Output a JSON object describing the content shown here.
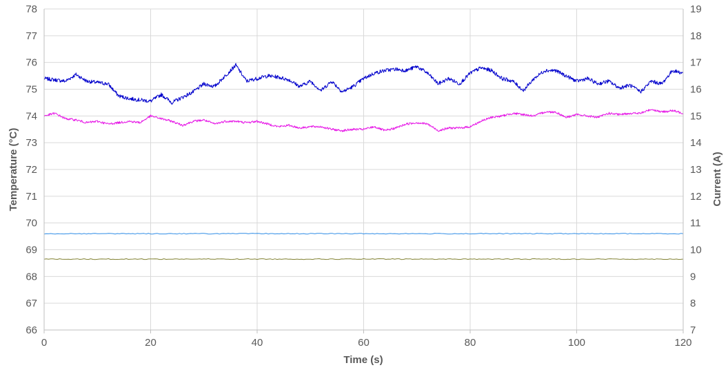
{
  "chart_data": {
    "type": "line",
    "xlabel": "Time (s)",
    "ylabel": "Temperature (°C)",
    "y2label": "Current (A)",
    "xlim": [
      0,
      120
    ],
    "ylim": [
      66,
      78
    ],
    "y2lim": [
      7,
      19
    ],
    "x_ticks": [
      "0",
      "20",
      "40",
      "60",
      "80",
      "100",
      "120"
    ],
    "y_ticks": [
      "66",
      "67",
      "68",
      "69",
      "70",
      "71",
      "72",
      "73",
      "74",
      "75",
      "76",
      "77",
      "78"
    ],
    "y2_ticks": [
      "7",
      "8",
      "9",
      "10",
      "11",
      "12",
      "13",
      "14",
      "15",
      "16",
      "17",
      "18",
      "19"
    ],
    "grid": true,
    "legend": "none",
    "series": [
      {
        "axis": "right",
        "color": "#0000cc",
        "x": [
          0,
          2,
          4,
          6,
          8,
          10,
          12,
          14,
          16,
          18,
          20,
          22,
          24,
          26,
          28,
          30,
          32,
          34,
          36,
          38,
          40,
          42,
          44,
          46,
          48,
          50,
          52,
          54,
          56,
          58,
          60,
          62,
          64,
          66,
          68,
          70,
          72,
          74,
          76,
          78,
          80,
          82,
          84,
          86,
          88,
          90,
          92,
          94,
          96,
          98,
          100,
          102,
          104,
          106,
          108,
          110,
          112,
          114,
          116,
          118,
          120
        ],
        "values": [
          16.4,
          16.35,
          16.3,
          16.55,
          16.3,
          16.25,
          16.2,
          15.75,
          15.65,
          15.6,
          15.55,
          15.8,
          15.5,
          15.7,
          15.9,
          16.2,
          16.1,
          16.5,
          16.9,
          16.3,
          16.4,
          16.5,
          16.45,
          16.35,
          16.1,
          16.3,
          15.95,
          16.3,
          15.9,
          16.1,
          16.4,
          16.6,
          16.7,
          16.75,
          16.7,
          16.85,
          16.6,
          16.2,
          16.4,
          16.2,
          16.6,
          16.8,
          16.7,
          16.4,
          16.3,
          15.95,
          16.4,
          16.7,
          16.7,
          16.5,
          16.3,
          16.4,
          16.2,
          16.3,
          16.05,
          16.15,
          15.9,
          16.3,
          16.2,
          16.7,
          16.6
        ]
      },
      {
        "axis": "left",
        "color": "#e619e6",
        "x": [
          0,
          2,
          4,
          6,
          8,
          10,
          12,
          14,
          16,
          18,
          20,
          22,
          24,
          26,
          28,
          30,
          32,
          34,
          36,
          38,
          40,
          42,
          44,
          46,
          48,
          50,
          52,
          54,
          56,
          58,
          60,
          62,
          64,
          66,
          68,
          70,
          72,
          74,
          76,
          78,
          80,
          82,
          84,
          86,
          88,
          90,
          92,
          94,
          96,
          98,
          100,
          102,
          104,
          106,
          108,
          110,
          112,
          114,
          116,
          118,
          120
        ],
        "values": [
          74.0,
          74.1,
          73.9,
          73.85,
          73.75,
          73.8,
          73.7,
          73.75,
          73.8,
          73.75,
          74.0,
          73.9,
          73.8,
          73.65,
          73.8,
          73.85,
          73.7,
          73.8,
          73.8,
          73.75,
          73.8,
          73.7,
          73.6,
          73.65,
          73.55,
          73.6,
          73.6,
          73.5,
          73.45,
          73.5,
          73.5,
          73.6,
          73.45,
          73.55,
          73.7,
          73.75,
          73.7,
          73.45,
          73.55,
          73.55,
          73.6,
          73.8,
          73.95,
          74.0,
          74.1,
          74.05,
          74.0,
          74.15,
          74.15,
          73.95,
          74.05,
          74.0,
          73.95,
          74.1,
          74.05,
          74.1,
          74.1,
          74.25,
          74.15,
          74.2,
          74.1
        ]
      },
      {
        "axis": "left",
        "color": "#2e8ce6",
        "x": [
          0,
          10,
          20,
          30,
          40,
          50,
          60,
          70,
          80,
          90,
          100,
          110,
          120
        ],
        "values": [
          69.6,
          69.6,
          69.6,
          69.6,
          69.6,
          69.6,
          69.6,
          69.6,
          69.6,
          69.6,
          69.6,
          69.6,
          69.6
        ]
      },
      {
        "axis": "left",
        "color": "#808030",
        "x": [
          0,
          10,
          20,
          30,
          40,
          50,
          60,
          70,
          80,
          90,
          100,
          110,
          120
        ],
        "values": [
          68.65,
          68.65,
          68.65,
          68.65,
          68.65,
          68.65,
          68.65,
          68.65,
          68.65,
          68.65,
          68.65,
          68.65,
          68.65
        ]
      }
    ]
  }
}
